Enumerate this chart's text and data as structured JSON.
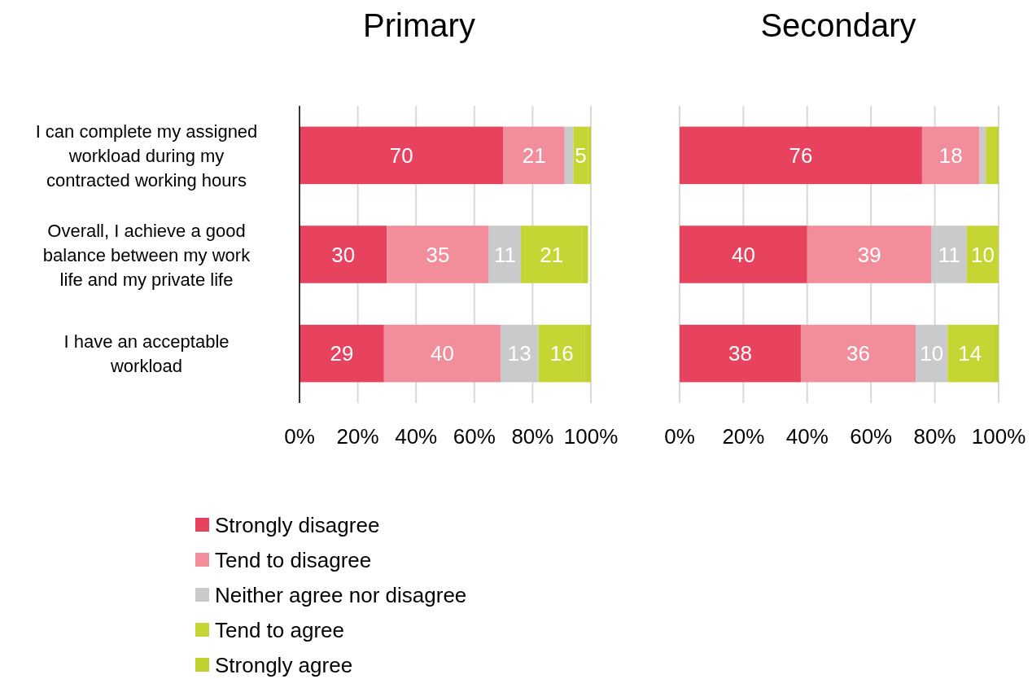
{
  "chart_data": [
    {
      "type": "bar",
      "title": "Primary",
      "orientation": "horizontal",
      "stacked": true,
      "categories": [
        "I can complete my assigned workload during my contracted working hours",
        "Overall, I achieve a good balance between my work life and my private life",
        "I have an acceptable workload"
      ],
      "xlim": [
        0,
        100
      ],
      "xticks": [
        {
          "value": 0,
          "label": "0%"
        },
        {
          "value": 20,
          "label": "20%"
        },
        {
          "value": 40,
          "label": "40%"
        },
        {
          "value": 60,
          "label": "60%"
        },
        {
          "value": 80,
          "label": "80%"
        },
        {
          "value": 100,
          "label": "100%"
        }
      ],
      "grid": "x",
      "legend": "bottom",
      "series": [
        {
          "name": "Strongly disagree",
          "color": "#e8435e",
          "values": [
            70,
            30,
            29
          ],
          "value_labels": [
            "70",
            "30",
            "29"
          ]
        },
        {
          "name": "Tend to disagree",
          "color": "#f28d9b",
          "values": [
            21,
            35,
            40
          ],
          "value_labels": [
            "21",
            "35",
            "40"
          ]
        },
        {
          "name": "Neither agree nor disagree",
          "color": "#c9cacc",
          "values": [
            3,
            11,
            13
          ],
          "value_labels": [
            null,
            "11",
            "13"
          ]
        },
        {
          "name": "Tend to agree",
          "color": "#c5d533",
          "values": [
            5,
            21,
            16
          ],
          "value_labels": [
            "5",
            "21",
            "16"
          ]
        },
        {
          "name": "Strongly agree",
          "color": "#bfd22f",
          "values": [
            1,
            2,
            2
          ],
          "value_labels": [
            null,
            null,
            null
          ]
        }
      ]
    },
    {
      "type": "bar",
      "title": "Secondary",
      "orientation": "horizontal",
      "stacked": true,
      "tick_labels": "x",
      "categories": [
        null,
        null,
        null
      ],
      "xlim": [
        0,
        100
      ],
      "xticks": [
        {
          "value": 0,
          "label": "0%"
        },
        {
          "value": 20,
          "label": "20%"
        },
        {
          "value": 40,
          "label": "40%"
        },
        {
          "value": 60,
          "label": "60%"
        },
        {
          "value": 80,
          "label": "80%"
        },
        {
          "value": 100,
          "label": "100%"
        }
      ],
      "grid": "x",
      "series": [
        {
          "color": "#e8435e",
          "values": [
            76,
            40,
            38
          ],
          "value_labels": [
            "76",
            "40",
            "38"
          ]
        },
        {
          "color": "#f28d9b",
          "values": [
            18,
            39,
            36
          ],
          "value_labels": [
            "18",
            "39",
            "36"
          ]
        },
        {
          "color": "#c9cacc",
          "values": [
            2,
            11,
            10
          ],
          "value_labels": [
            null,
            "11",
            "10"
          ]
        },
        {
          "color": "#c5d533",
          "values": [
            3,
            10,
            14
          ],
          "value_labels": [
            null,
            "10",
            "14"
          ]
        },
        {
          "color": "#bfd22f",
          "values": [
            1,
            0,
            2
          ],
          "value_labels": [
            null,
            null,
            null
          ]
        }
      ]
    }
  ]
}
